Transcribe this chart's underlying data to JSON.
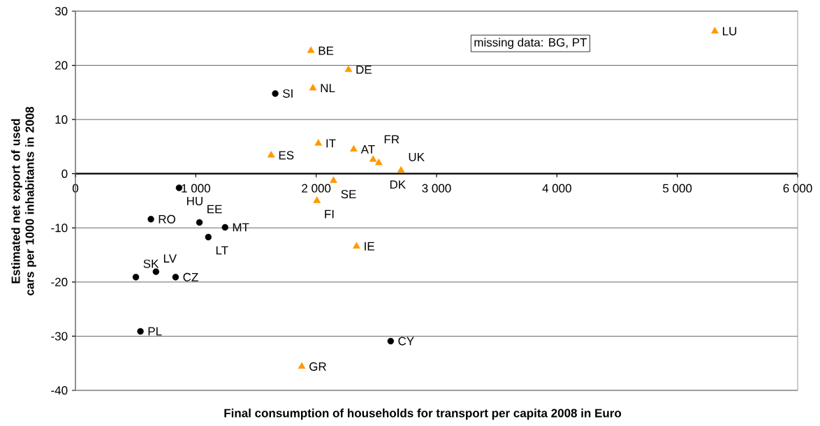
{
  "chart_data": {
    "type": "scatter",
    "xlabel": "Final consumption of households for transport per capita 2008 in Euro",
    "ylabel": "Estimated net export of used cars per 1000 inhabitants in 2008",
    "xlim": [
      0,
      6000
    ],
    "ylim": [
      -40,
      30
    ],
    "xticks": [
      0,
      {
        "value": 1000,
        "label": "1 000"
      },
      {
        "value": 2000,
        "label": "2 000"
      },
      {
        "value": 3000,
        "label": "3 000"
      },
      {
        "value": 4000,
        "label": "4 000"
      },
      {
        "value": 5000,
        "label": "5 000"
      },
      {
        "value": 6000,
        "label": "6 000"
      }
    ],
    "yticks": [
      -40,
      -30,
      -20,
      -10,
      0,
      10,
      20,
      30
    ],
    "grid": "y",
    "series": [
      {
        "color": "#000000",
        "marker": "circle",
        "x": [
          1660,
          861,
          627,
          1030,
          1243,
          1104,
          669,
          502,
          832,
          540,
          2619
        ],
        "values": [
          14.8,
          -2.6,
          -8.4,
          -9.0,
          -9.9,
          -11.7,
          -18.1,
          -19.1,
          -19.1,
          -29.1,
          -30.9
        ]
      },
      {
        "color": "#ff9900",
        "marker": "triangle",
        "x": [
          1956,
          2268,
          1973,
          2018,
          1626,
          2312,
          2473,
          2520,
          2705,
          2144,
          2006,
          2335,
          1880,
          5312
        ],
        "values": [
          22.7,
          19.2,
          15.8,
          5.6,
          3.4,
          4.5,
          2.6,
          2.0,
          0.6,
          -1.3,
          -5.0,
          -13.4,
          -35.6,
          26.3
        ]
      }
    ],
    "annotations": [
      {
        "text": "SI",
        "x": 1660,
        "y": 14.8
      },
      {
        "text": "HU",
        "x": 861,
        "y": -2.6
      },
      {
        "text": "RO",
        "x": 627,
        "y": -8.4
      },
      {
        "text": "EE",
        "x": 1030,
        "y": -9.0
      },
      {
        "text": "MT",
        "x": 1243,
        "y": -9.9
      },
      {
        "text": "LT",
        "x": 1104,
        "y": -11.7
      },
      {
        "text": "LV",
        "x": 669,
        "y": -18.1
      },
      {
        "text": "SK",
        "x": 502,
        "y": -19.1
      },
      {
        "text": "CZ",
        "x": 832,
        "y": -19.1
      },
      {
        "text": "PL",
        "x": 540,
        "y": -29.1
      },
      {
        "text": "CY",
        "x": 2619,
        "y": -30.9
      },
      {
        "text": "BE",
        "x": 1956,
        "y": 22.7
      },
      {
        "text": "DE",
        "x": 2268,
        "y": 19.2
      },
      {
        "text": "NL",
        "x": 1973,
        "y": 15.8
      },
      {
        "text": "IT",
        "x": 2018,
        "y": 5.6
      },
      {
        "text": "ES",
        "x": 1626,
        "y": 3.4
      },
      {
        "text": "AT",
        "x": 2312,
        "y": 4.5
      },
      {
        "text": "FR",
        "x": 2473,
        "y": 2.6
      },
      {
        "text": "DK",
        "x": 2520,
        "y": 2.0
      },
      {
        "text": "UK",
        "x": 2705,
        "y": 0.6
      },
      {
        "text": "SE",
        "x": 2144,
        "y": -1.3
      },
      {
        "text": "FI",
        "x": 2006,
        "y": -5.0
      },
      {
        "text": "IE",
        "x": 2335,
        "y": -13.4
      },
      {
        "text": "GR",
        "x": 1880,
        "y": -35.6
      },
      {
        "text": "LU",
        "x": 5312,
        "y": 26.3
      },
      "missing data: BG, PT"
    ]
  }
}
